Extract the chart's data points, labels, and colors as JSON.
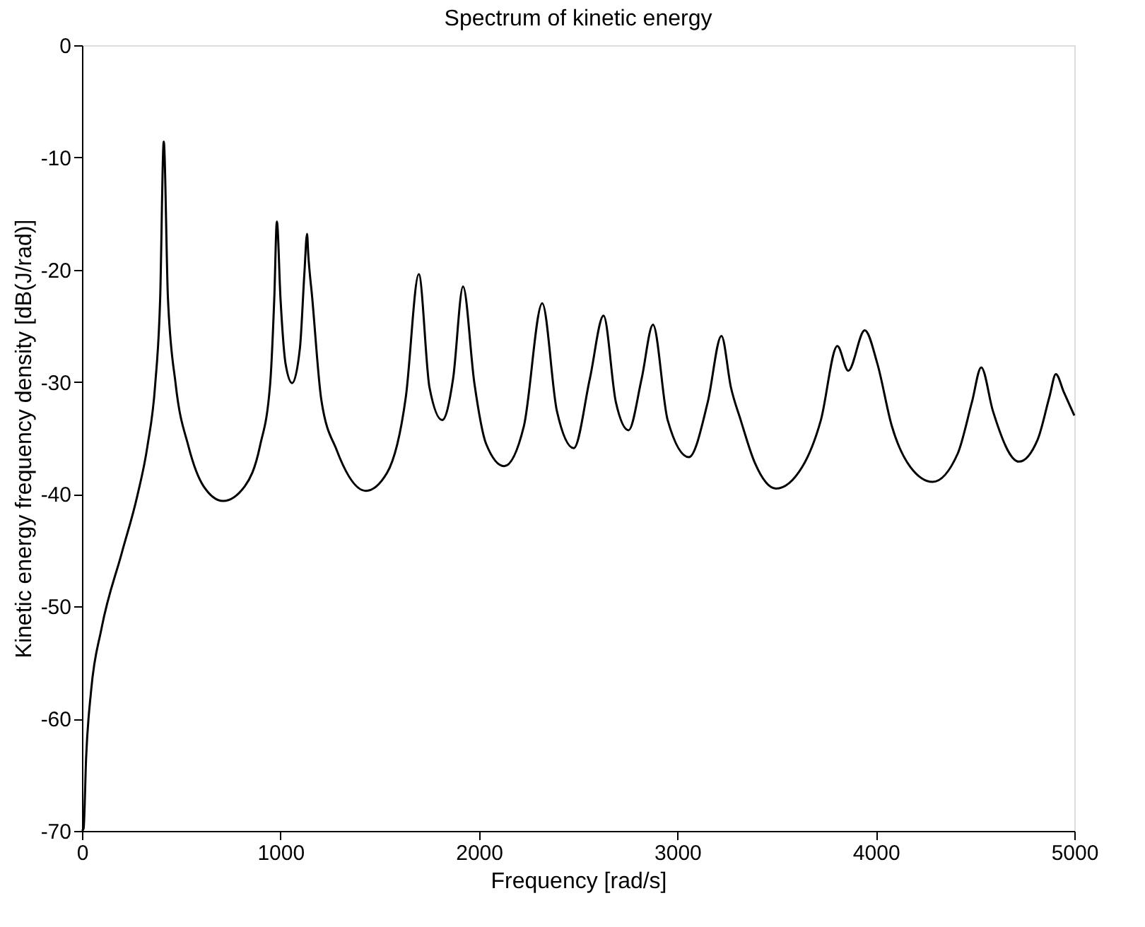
{
  "chart_data": {
    "type": "line",
    "title": "Spectrum of kinetic energy",
    "xlabel": "Frequency [rad/s]",
    "ylabel": "Kinetic energy frequency density [dB(J/rad)]",
    "xlim": [
      0,
      5000
    ],
    "xticks": [
      0,
      1000,
      2000,
      3000,
      4000,
      5000
    ],
    "ylim": [
      -70,
      0
    ],
    "yticks": [
      -70,
      -60,
      -50,
      -40,
      -30,
      -20,
      -10,
      0
    ],
    "grid": false,
    "marker": "none",
    "line_style": "solid",
    "x": [
      0,
      8,
      21,
      46,
      98,
      201,
      278,
      330,
      369,
      394,
      412,
      433,
      472,
      536,
      613,
      711,
      820,
      897,
      948,
      969,
      982,
      1000,
      1026,
      1059,
      1098,
      1121,
      1134,
      1140,
      1160,
      1206,
      1284,
      1430,
      1537,
      1632,
      1697,
      1751,
      1815,
      1870,
      1920,
      1977,
      2036,
      2127,
      2227,
      2319,
      2393,
      2478,
      2559,
      2628,
      2690,
      2754,
      2820,
      2877,
      2951,
      3058,
      3153,
      3222,
      3270,
      3319,
      3390,
      3497,
      3628,
      3723,
      3806,
      3861,
      3944,
      4008,
      4080,
      4175,
      4286,
      4412,
      4484,
      4531,
      4590,
      4721,
      4816,
      4875,
      4907,
      4947,
      5000
    ],
    "series": [
      {
        "color": "#000000",
        "values": [
          -70,
          -69.8,
          -63.4,
          -57.5,
          -52,
          -45.2,
          -40.2,
          -35.7,
          -30.2,
          -22.5,
          -8.6,
          -22.5,
          -30.2,
          -35.7,
          -39.3,
          -40.6,
          -39.3,
          -35.7,
          -30.2,
          -22.5,
          -15.7,
          -22.5,
          -28.4,
          -30.1,
          -27,
          -20.2,
          -16.8,
          -18.6,
          -22.5,
          -31.6,
          -36.1,
          -39.7,
          -38.1,
          -31.3,
          -20.4,
          -30.5,
          -33.4,
          -29.7,
          -21.5,
          -30.1,
          -35.5,
          -37.5,
          -33.9,
          -23,
          -32.6,
          -35.9,
          -29.7,
          -24.1,
          -31.8,
          -34.3,
          -29.7,
          -24.9,
          -33.4,
          -36.7,
          -31.8,
          -25.9,
          -30.5,
          -33.4,
          -37.2,
          -39.5,
          -37.6,
          -33.4,
          -26.8,
          -29,
          -25.4,
          -28.4,
          -33.9,
          -37.6,
          -38.9,
          -36.4,
          -31.8,
          -28.7,
          -32.6,
          -37.1,
          -35.1,
          -31.3,
          -29.3,
          -30.9,
          -33
        ]
      }
    ]
  }
}
